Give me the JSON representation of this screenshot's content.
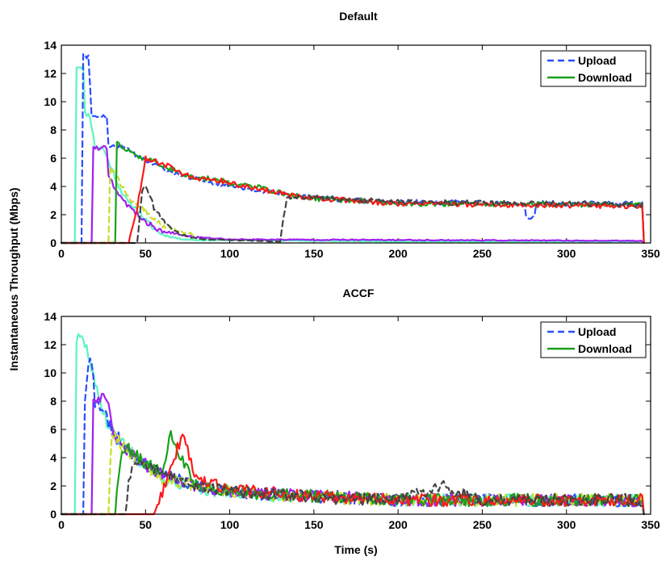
{
  "chart_data": [
    {
      "type": "line",
      "title": "Default",
      "xlabel": "Time (s)",
      "ylabel": "Instantaneous Throughput (Mbps)",
      "xlim": [
        0,
        350
      ],
      "ylim": [
        0,
        14
      ],
      "xticks": [
        "0",
        "50",
        "100",
        "150",
        "200",
        "250",
        "300",
        "350"
      ],
      "yticks": [
        "0",
        "2",
        "4",
        "6",
        "8",
        "10",
        "12",
        "14"
      ],
      "legend": {
        "position": "top-right",
        "upload": "Upload",
        "download": "Download"
      },
      "series": [
        {
          "name": "Download flow 1",
          "style": "solid",
          "color": "#5cf5c0",
          "x": [
            0,
            8,
            9,
            10,
            13,
            14,
            17,
            20,
            25,
            30,
            35,
            40,
            45,
            50,
            55,
            60,
            70,
            80,
            100,
            150,
            200,
            250,
            300,
            345,
            346
          ],
          "y": [
            0,
            0,
            12.5,
            12.5,
            12.5,
            9.2,
            9.0,
            6.8,
            6.7,
            5.2,
            3.8,
            2.8,
            2.4,
            1.6,
            1.0,
            0.6,
            0.3,
            0.2,
            0.2,
            0.15,
            0.1,
            0.1,
            0.1,
            0.1,
            0
          ]
        },
        {
          "name": "Upload flow 1",
          "style": "dashed",
          "color": "#2a4dff",
          "x": [
            0,
            12,
            13,
            16,
            18,
            21,
            27,
            28,
            31,
            34,
            40,
            50,
            60,
            75,
            95,
            115,
            135,
            155,
            175,
            195,
            275,
            276,
            281,
            282,
            345,
            346
          ],
          "y": [
            0,
            0,
            13.3,
            13.2,
            9.0,
            9.0,
            9.0,
            6.8,
            6.8,
            6.8,
            6.6,
            5.8,
            5.3,
            4.6,
            4.2,
            3.8,
            3.4,
            3.2,
            3.0,
            2.9,
            2.8,
            1.8,
            1.8,
            2.8,
            2.8,
            0
          ]
        },
        {
          "name": "Download flow 2",
          "style": "solid",
          "color": "#a020f0",
          "x": [
            0,
            18,
            19,
            21,
            27,
            28,
            32,
            35,
            40,
            45,
            50,
            60,
            80,
            100,
            345,
            346
          ],
          "y": [
            0,
            0,
            6.7,
            6.7,
            6.7,
            4.8,
            3.8,
            3.2,
            2.6,
            2.0,
            1.5,
            0.8,
            0.4,
            0.25,
            0.15,
            0
          ]
        },
        {
          "name": "Upload flow 2",
          "style": "dashed",
          "color": "#c7dc2c",
          "x": [
            0,
            28,
            29,
            32,
            35,
            40,
            50,
            60,
            80
          ],
          "y": [
            0,
            0,
            5.3,
            5.0,
            4.2,
            3.2,
            2.3,
            1.2,
            0.5
          ]
        },
        {
          "name": "Download flow 3",
          "style": "solid",
          "color": "#1aa01a",
          "x": [
            0,
            32,
            33,
            36,
            40,
            45,
            50,
            55,
            60,
            70,
            75,
            80,
            95,
            100,
            115,
            135,
            155,
            175,
            190,
            195,
            345,
            346
          ],
          "y": [
            0,
            0,
            7.0,
            6.8,
            6.5,
            6.2,
            5.9,
            5.8,
            5.5,
            5.0,
            4.8,
            4.6,
            4.5,
            4.2,
            4.0,
            3.4,
            3.1,
            3.0,
            2.9,
            2.8,
            2.7,
            0
          ]
        },
        {
          "name": "Download flow 4",
          "style": "solid",
          "color": "#ff1a1a",
          "x": [
            0,
            40,
            45,
            50,
            55,
            60,
            65,
            70,
            75,
            80,
            95,
            100,
            115,
            135,
            155,
            175,
            195,
            345,
            346
          ],
          "y": [
            0,
            0,
            2.5,
            6.0,
            5.8,
            5.6,
            5.4,
            5.0,
            4.8,
            4.6,
            4.4,
            4.2,
            3.9,
            3.4,
            3.1,
            3.0,
            2.8,
            2.6,
            0
          ]
        },
        {
          "name": "Upload flow 3",
          "style": "dashed",
          "color": "#444444",
          "x": [
            0,
            45,
            48,
            50,
            52,
            55,
            60,
            65,
            70,
            80,
            100,
            130,
            131,
            134,
            135,
            200,
            345
          ],
          "y": [
            0,
            0,
            3.8,
            4.0,
            3.5,
            2.5,
            1.6,
            1.0,
            0.6,
            0.3,
            0.2,
            0.1,
            1.0,
            3.3,
            3.3,
            2.9,
            2.7
          ]
        }
      ]
    },
    {
      "type": "line",
      "title": "ACCF",
      "xlabel": "Time (s)",
      "ylabel": "Instantaneous Throughput (Mbps)",
      "xlim": [
        0,
        350
      ],
      "ylim": [
        0,
        14
      ],
      "xticks": [
        "0",
        "50",
        "100",
        "150",
        "200",
        "250",
        "300",
        "350"
      ],
      "yticks": [
        "0",
        "2",
        "4",
        "6",
        "8",
        "10",
        "12",
        "14"
      ],
      "legend": {
        "position": "top-right",
        "upload": "Upload",
        "download": "Download"
      },
      "series": [
        {
          "name": "Download flow 1",
          "style": "solid",
          "color": "#5cf5c0",
          "x": [
            0,
            8,
            9,
            12,
            14,
            17,
            20,
            25,
            28,
            32,
            40,
            50,
            60,
            80,
            100,
            150,
            200,
            250,
            300,
            345,
            346
          ],
          "y": [
            0,
            0,
            12.4,
            12.4,
            12.0,
            11.0,
            9.0,
            7.4,
            6.2,
            5.6,
            4.5,
            3.5,
            2.6,
            1.8,
            1.5,
            1.2,
            1.0,
            1.0,
            1.0,
            1.0,
            0
          ]
        },
        {
          "name": "Upload flow 1",
          "style": "dashed",
          "color": "#2a4dff",
          "x": [
            0,
            13,
            14,
            16,
            18,
            20,
            25,
            30,
            35,
            40,
            50,
            60,
            80,
            100,
            150,
            200,
            250,
            300,
            345,
            346
          ],
          "y": [
            0,
            0,
            8.0,
            10.5,
            11.0,
            8.0,
            7.2,
            6.0,
            5.2,
            4.4,
            3.6,
            2.8,
            2.0,
            1.6,
            1.2,
            1.0,
            1.0,
            1.0,
            1.0,
            0
          ]
        },
        {
          "name": "Download flow 2",
          "style": "solid",
          "color": "#a020f0",
          "x": [
            0,
            18,
            19,
            22,
            27,
            30,
            35,
            40,
            50,
            60,
            80,
            100,
            150,
            200,
            250,
            300,
            345,
            346
          ],
          "y": [
            0,
            0,
            8.2,
            8.3,
            8.2,
            6.0,
            5.0,
            4.4,
            3.5,
            2.8,
            2.0,
            1.6,
            1.3,
            1.0,
            1.0,
            1.0,
            1.0,
            0
          ]
        },
        {
          "name": "Upload flow 2",
          "style": "dashed",
          "color": "#c7dc2c",
          "x": [
            0,
            28,
            30,
            35,
            40,
            50,
            60,
            80,
            100,
            150,
            200,
            250,
            300,
            345,
            346
          ],
          "y": [
            0,
            0,
            6.0,
            5.0,
            4.4,
            3.4,
            2.6,
            2.0,
            1.6,
            1.2,
            1.0,
            1.0,
            1.0,
            1.0,
            0
          ]
        },
        {
          "name": "Download flow 3",
          "style": "solid",
          "color": "#1aa01a",
          "x": [
            0,
            32,
            35,
            40,
            50,
            60,
            65,
            80,
            100,
            150,
            200,
            250,
            300,
            345,
            346
          ],
          "y": [
            0,
            0,
            4.0,
            4.6,
            3.6,
            3.0,
            5.5,
            2.0,
            1.6,
            1.3,
            1.0,
            1.0,
            1.0,
            1.0,
            0
          ]
        },
        {
          "name": "Download flow 4",
          "style": "solid",
          "color": "#ff1a1a",
          "x": [
            0,
            55,
            60,
            65,
            70,
            72,
            80,
            100,
            150,
            200,
            250,
            300,
            345,
            346
          ],
          "y": [
            0,
            0,
            1.5,
            3.0,
            5.0,
            6.0,
            2.5,
            1.7,
            1.3,
            1.0,
            1.0,
            1.0,
            1.0,
            0
          ]
        },
        {
          "name": "Upload flow 3",
          "style": "dashed",
          "color": "#444444",
          "x": [
            0,
            38,
            40,
            45,
            50,
            60,
            80,
            100,
            150,
            200,
            225,
            250,
            300,
            345,
            346
          ],
          "y": [
            0,
            0,
            2.5,
            3.6,
            3.4,
            2.8,
            2.0,
            1.6,
            1.2,
            1.0,
            2.0,
            1.0,
            1.0,
            1.0,
            0
          ]
        }
      ]
    }
  ]
}
